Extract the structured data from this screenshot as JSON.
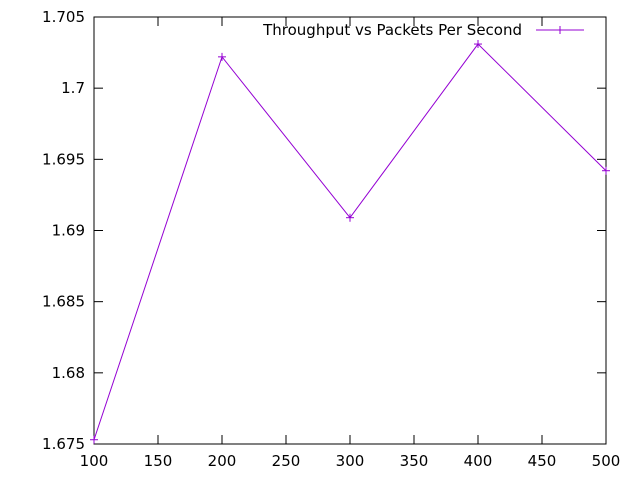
{
  "chart_data": {
    "type": "line",
    "title": "",
    "xlabel": "",
    "ylabel": "",
    "x": [
      100,
      200,
      300,
      400,
      500
    ],
    "series": [
      {
        "name": "Throughput vs Packets Per Second",
        "values": [
          1.6753,
          1.7022,
          1.6909,
          1.7031,
          1.6942
        ],
        "color": "#9400d3",
        "marker": "plus"
      }
    ],
    "xlim": [
      100,
      500
    ],
    "ylim": [
      1.675,
      1.705
    ],
    "xticks": [
      100,
      150,
      200,
      250,
      300,
      350,
      400,
      450,
      500
    ],
    "xtick_labels": [
      "100",
      "150",
      "200",
      "250",
      "300",
      "350",
      "400",
      "450",
      "500"
    ],
    "yticks": [
      1.675,
      1.68,
      1.685,
      1.69,
      1.695,
      1.7,
      1.705
    ],
    "ytick_labels": [
      "1.675",
      "1.68",
      "1.685",
      "1.69",
      "1.695",
      "1.7",
      "1.705"
    ],
    "grid": false,
    "legend_position": "top-right"
  }
}
